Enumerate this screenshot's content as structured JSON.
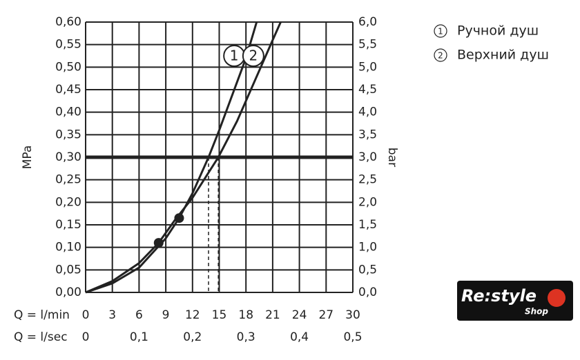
{
  "chart_data": {
    "type": "line",
    "ylabel": "MPa",
    "y2label": "bar",
    "xlabel": "Q = l/min",
    "x2label": "Q = l/sec",
    "xlim": [
      0,
      30
    ],
    "xticks": [
      0,
      3,
      6,
      9,
      12,
      15,
      18,
      21,
      24,
      27,
      30
    ],
    "x2lim": [
      0,
      0.5
    ],
    "x2ticks": [
      0,
      {
        "value": 0.1,
        "label": "0,1"
      },
      {
        "value": 0.2,
        "label": "0,2"
      },
      {
        "value": 0.3,
        "label": "0,3"
      },
      {
        "value": 0.4,
        "label": "0,4"
      },
      {
        "value": 0.5,
        "label": "0,5"
      }
    ],
    "ylim": [
      0,
      0.6
    ],
    "yticks": [
      {
        "value": 0,
        "label": "0,00"
      },
      {
        "value": 0.05,
        "label": "0,05"
      },
      {
        "value": 0.1,
        "label": "0,10"
      },
      {
        "value": 0.15,
        "label": "0,15"
      },
      {
        "value": 0.2,
        "label": "0,20"
      },
      {
        "value": 0.25,
        "label": "0,25"
      },
      {
        "value": 0.3,
        "label": "0,30"
      },
      {
        "value": 0.35,
        "label": "0,35"
      },
      {
        "value": 0.4,
        "label": "0,40"
      },
      {
        "value": 0.45,
        "label": "0,45"
      },
      {
        "value": 0.5,
        "label": "0,50"
      },
      {
        "value": 0.55,
        "label": "0,55"
      },
      {
        "value": 0.6,
        "label": "0,60"
      }
    ],
    "y2lim": [
      0,
      6
    ],
    "y2ticks": [
      {
        "value": 0,
        "label": "0,0"
      },
      {
        "value": 0.5,
        "label": "0,5"
      },
      {
        "value": 1,
        "label": "1,0"
      },
      {
        "value": 1.5,
        "label": "1,5"
      },
      {
        "value": 2,
        "label": "2,0"
      },
      {
        "value": 2.5,
        "label": "2,5"
      },
      {
        "value": 3,
        "label": "3,0"
      },
      {
        "value": 3.5,
        "label": "3,5"
      },
      {
        "value": 4,
        "label": "4,0"
      },
      {
        "value": 4.5,
        "label": "4,5"
      },
      {
        "value": 5,
        "label": "5,0"
      },
      {
        "value": 5.5,
        "label": "5,5"
      },
      {
        "value": 6,
        "label": "6,0"
      }
    ],
    "grid": true,
    "color": "#222222",
    "series": [
      {
        "name": "Ручной душ",
        "label": "1",
        "x": [
          0,
          3,
          6,
          9,
          10.5,
          12,
          13.8,
          15,
          16.5,
          18,
          19.2
        ],
        "values": [
          0,
          0.02,
          0.055,
          0.12,
          0.165,
          0.22,
          0.3,
          0.36,
          0.44,
          0.52,
          0.6
        ]
      },
      {
        "name": "Верхний душ",
        "label": "2",
        "x": [
          0,
          3,
          6,
          8.2,
          10,
          12,
          14.9,
          17,
          19,
          21,
          21.9
        ],
        "values": [
          0,
          0.025,
          0.065,
          0.11,
          0.16,
          0.21,
          0.3,
          0.38,
          0.47,
          0.56,
          0.6
        ]
      }
    ],
    "markers": [
      {
        "x": 8.2,
        "y": 0.11
      },
      {
        "x": 10.5,
        "y": 0.165
      }
    ],
    "hline": 0.3,
    "vlines": [
      13.8,
      14.9
    ]
  },
  "logo": {
    "text": "Re:style",
    "sub": "Shop"
  }
}
